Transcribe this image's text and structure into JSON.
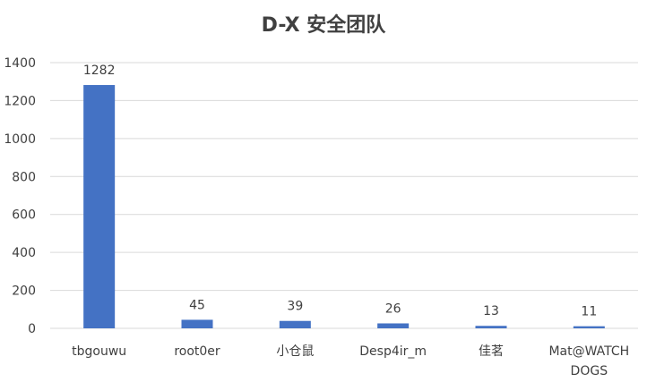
{
  "chart_data": {
    "type": "bar",
    "title": "D-X 安全团队",
    "categories": [
      "tbgouwu",
      "root0er",
      "小仓鼠",
      "Desp4ir_m",
      "佳茗",
      "Mat@WATCHDOGS"
    ],
    "category_display": [
      [
        "tbgouwu"
      ],
      [
        "root0er"
      ],
      [
        "小仓鼠"
      ],
      [
        "Desp4ir_m"
      ],
      [
        "佳茗"
      ],
      [
        "Mat@WATCH",
        "DOGS"
      ]
    ],
    "values": [
      1282,
      45,
      39,
      26,
      13,
      11
    ],
    "xlabel": "",
    "ylabel": "",
    "ylim": [
      0,
      1400
    ],
    "yticks": [
      0,
      200,
      400,
      600,
      800,
      1000,
      1200,
      1400
    ],
    "grid": true,
    "legend": "none",
    "bar_color": "#4472C4",
    "grid_color": "#D9D9D9",
    "text_color": "#404040"
  }
}
